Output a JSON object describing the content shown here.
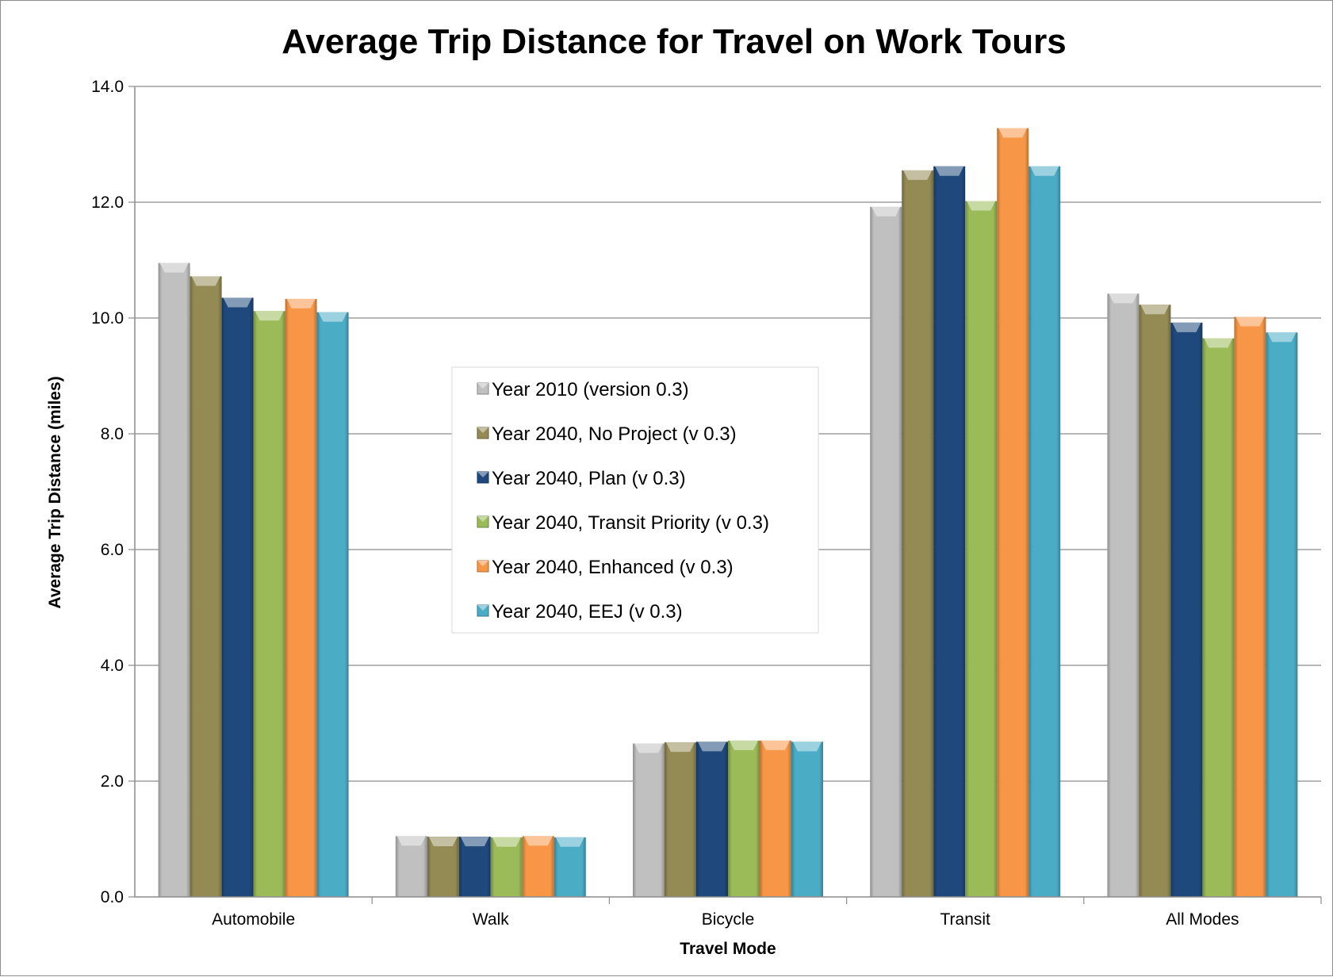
{
  "chart_data": {
    "type": "bar",
    "title": "Average Trip Distance for Travel on Work Tours",
    "xlabel": "Travel Mode",
    "ylabel": "Average Trip Distance (miles)",
    "ylim": [
      0,
      14
    ],
    "yticks": [
      "0.0",
      "2.0",
      "4.0",
      "6.0",
      "8.0",
      "10.0",
      "12.0",
      "14.0"
    ],
    "grid": true,
    "legend_position": "center",
    "categories": [
      "Automobile",
      "Walk",
      "Bicycle",
      "Transit",
      "All Modes"
    ],
    "series": [
      {
        "name": "Year 2010 (version 0.3)",
        "color": "#c0c0c0",
        "values": [
          10.95,
          1.05,
          2.65,
          11.92,
          10.42
        ]
      },
      {
        "name": "Year 2040, No Project (v 0.3)",
        "color": "#948a54",
        "values": [
          10.72,
          1.04,
          2.67,
          12.55,
          10.23
        ]
      },
      {
        "name": "Year 2040, Plan (v 0.3)",
        "color": "#1f497d",
        "values": [
          10.35,
          1.04,
          2.68,
          12.62,
          9.92
        ]
      },
      {
        "name": "Year 2040, Transit Priority (v 0.3)",
        "color": "#9bbb59",
        "values": [
          10.12,
          1.03,
          2.7,
          12.02,
          9.65
        ]
      },
      {
        "name": "Year 2040, Enhanced (v 0.3)",
        "color": "#f79646",
        "values": [
          10.33,
          1.05,
          2.7,
          13.28,
          10.02
        ]
      },
      {
        "name": "Year 2040, EEJ (v 0.3)",
        "color": "#4bacc6",
        "values": [
          10.1,
          1.03,
          2.68,
          12.62,
          9.75
        ]
      }
    ]
  }
}
